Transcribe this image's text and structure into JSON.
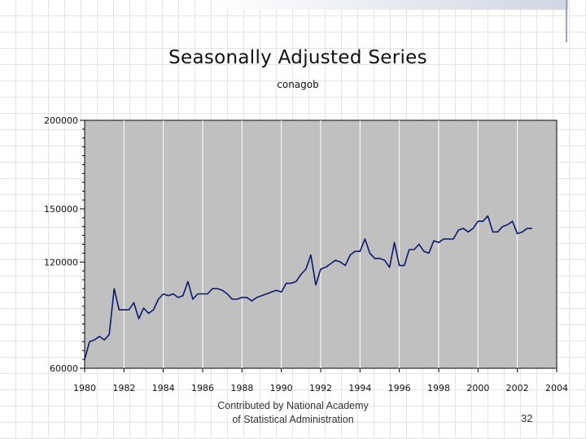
{
  "chart_data": {
    "type": "line",
    "title": "Seasonally Adjusted Series",
    "subtitle": "conagob",
    "xlim": [
      1980,
      2004
    ],
    "ylim": [
      60000,
      200000
    ],
    "x_ticks": [
      1980,
      1982,
      1984,
      1986,
      1988,
      1990,
      1992,
      1994,
      1996,
      1998,
      2000,
      2002,
      2004
    ],
    "x_tick_labels": [
      "1980",
      "1982",
      "1984",
      "1986",
      "1988",
      "1990",
      "1992",
      "1994",
      "1996",
      "1998",
      "2000",
      "2002",
      "2004"
    ],
    "y_ticks": [
      60000,
      120000,
      150000,
      200000
    ],
    "y_tick_labels": [
      "60000",
      "120000",
      "150000",
      "200000"
    ],
    "grid": "vertical",
    "series": [
      {
        "color": "#0a1a6e",
        "x": [
          1980.0,
          1980.25,
          1980.5,
          1980.75,
          1981.0,
          1981.25,
          1981.5,
          1981.75,
          1982.0,
          1982.25,
          1982.5,
          1982.75,
          1983.0,
          1983.25,
          1983.5,
          1983.75,
          1984.0,
          1984.25,
          1984.5,
          1984.75,
          1985.0,
          1985.25,
          1985.5,
          1985.75,
          1986.0,
          1986.25,
          1986.5,
          1986.75,
          1987.0,
          1987.25,
          1987.5,
          1987.75,
          1988.0,
          1988.25,
          1988.5,
          1988.75,
          1989.0,
          1989.25,
          1989.5,
          1989.75,
          1990.0,
          1990.25,
          1990.5,
          1990.75,
          1991.0,
          1991.25,
          1991.5,
          1991.75,
          1992.0,
          1992.25,
          1992.5,
          1992.75,
          1993.0,
          1993.25,
          1993.5,
          1993.75,
          1994.0,
          1994.25,
          1994.5,
          1994.75,
          1995.0,
          1995.25,
          1995.5,
          1995.75,
          1996.0,
          1996.25,
          1996.5,
          1996.75,
          1997.0,
          1997.25,
          1997.5,
          1997.75,
          1998.0,
          1998.25,
          1998.5,
          1998.75,
          1999.0,
          1999.25,
          1999.5,
          1999.75,
          2000.0,
          2000.25,
          2000.5,
          2000.75,
          2001.0,
          2001.25,
          2001.5,
          2001.75,
          2002.0,
          2002.25,
          2002.5,
          2002.75
        ],
        "values": [
          65000,
          75000,
          76000,
          78000,
          76000,
          79000,
          105000,
          93000,
          93000,
          93000,
          97000,
          88000,
          94000,
          91000,
          93000,
          99000,
          102000,
          101000,
          102000,
          100000,
          101000,
          109000,
          99000,
          102000,
          102000,
          102000,
          105000,
          105000,
          104000,
          102000,
          99000,
          99000,
          100000,
          100000,
          98000,
          100000,
          101000,
          102000,
          103000,
          104000,
          103000,
          108000,
          108000,
          109000,
          113000,
          116000,
          124000,
          107000,
          116000,
          117000,
          119000,
          121000,
          120000,
          118000,
          124000,
          126000,
          126000,
          133000,
          125000,
          122000,
          122000,
          121000,
          117000,
          131000,
          118000,
          118000,
          127000,
          127000,
          130000,
          126000,
          125000,
          132000,
          131000,
          133000,
          133000,
          133000,
          138000,
          139000,
          137000,
          139000,
          143000,
          143000,
          146000,
          137000,
          137000,
          140000,
          141000,
          143000,
          136000,
          137000,
          139000,
          139000
        ]
      }
    ]
  },
  "footer": {
    "line1": "Contributed by National Academy",
    "line2": "of Statistical Administration",
    "page_number": "32"
  }
}
